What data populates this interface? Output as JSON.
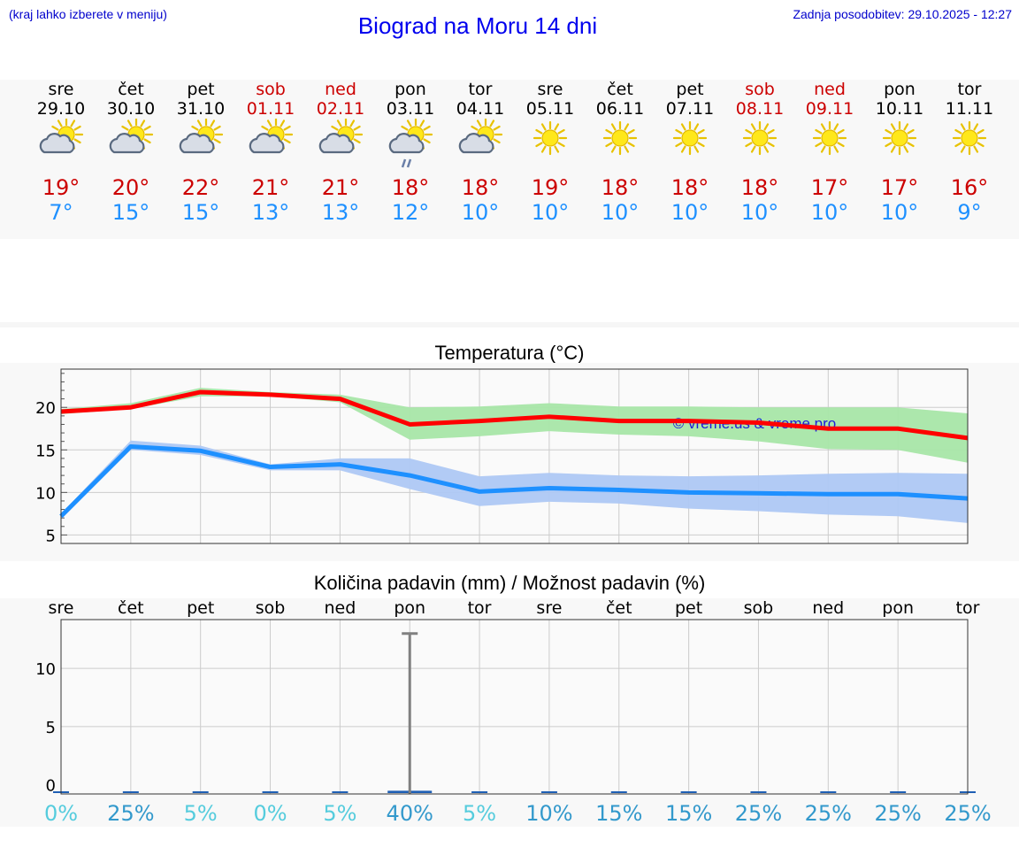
{
  "header": {
    "left_note": "(kraj lahko izberete v meniju)",
    "title": "Biograd na Moru 14 dni",
    "updated": "Zadnja posodobitev: 29.10.2025 - 12:27"
  },
  "days": [
    {
      "name": "sre",
      "date": "29.10",
      "weekend": false,
      "icon": "partly-cloudy-icon",
      "tmax": "19°",
      "tmin": "7°"
    },
    {
      "name": "čet",
      "date": "30.10",
      "weekend": false,
      "icon": "partly-cloudy-icon",
      "tmax": "20°",
      "tmin": "15°"
    },
    {
      "name": "pet",
      "date": "31.10",
      "weekend": false,
      "icon": "partly-cloudy-icon",
      "tmax": "22°",
      "tmin": "15°"
    },
    {
      "name": "sob",
      "date": "01.11",
      "weekend": true,
      "icon": "partly-cloudy-icon",
      "tmax": "21°",
      "tmin": "13°"
    },
    {
      "name": "ned",
      "date": "02.11",
      "weekend": true,
      "icon": "partly-cloudy-icon",
      "tmax": "21°",
      "tmin": "13°"
    },
    {
      "name": "pon",
      "date": "03.11",
      "weekend": false,
      "icon": "partly-cloudy-rain-icon",
      "tmax": "18°",
      "tmin": "12°"
    },
    {
      "name": "tor",
      "date": "04.11",
      "weekend": false,
      "icon": "partly-cloudy-icon",
      "tmax": "18°",
      "tmin": "10°"
    },
    {
      "name": "sre",
      "date": "05.11",
      "weekend": false,
      "icon": "sun-icon",
      "tmax": "19°",
      "tmin": "10°"
    },
    {
      "name": "čet",
      "date": "06.11",
      "weekend": false,
      "icon": "sun-icon",
      "tmax": "18°",
      "tmin": "10°"
    },
    {
      "name": "pet",
      "date": "07.11",
      "weekend": false,
      "icon": "sun-icon",
      "tmax": "18°",
      "tmin": "10°"
    },
    {
      "name": "sob",
      "date": "08.11",
      "weekend": true,
      "icon": "sun-icon",
      "tmax": "18°",
      "tmin": "10°"
    },
    {
      "name": "ned",
      "date": "09.11",
      "weekend": true,
      "icon": "sun-icon",
      "tmax": "17°",
      "tmin": "10°"
    },
    {
      "name": "pon",
      "date": "10.11",
      "weekend": false,
      "icon": "sun-icon",
      "tmax": "17°",
      "tmin": "10°"
    },
    {
      "name": "tor",
      "date": "11.11",
      "weekend": false,
      "icon": "sun-icon",
      "tmax": "16°",
      "tmin": "9°"
    }
  ],
  "chart_data": [
    {
      "type": "line",
      "title": "Temperatura (°C)",
      "xlabel": "",
      "ylabel": "",
      "ylim": [
        4,
        24.5
      ],
      "yticks": [
        5,
        10,
        15,
        20
      ],
      "grid": true,
      "watermark": "© vreme.us & vreme.pro",
      "x": [
        0,
        1,
        2,
        3,
        4,
        5,
        6,
        7,
        8,
        9,
        10,
        11,
        12,
        13
      ],
      "series": [
        {
          "name": "max",
          "color": "#ff0000",
          "values": [
            19.5,
            20,
            21.8,
            21.5,
            21,
            18,
            18.4,
            18.9,
            18.4,
            18.4,
            18.2,
            17.5,
            17.5,
            16.4
          ],
          "band_low": [
            19.2,
            19.8,
            21.3,
            21.3,
            20.6,
            16.2,
            16.6,
            17.2,
            16.8,
            16.6,
            16.0,
            15.1,
            15.0,
            13.5
          ],
          "band_high": [
            19.8,
            20.5,
            22.3,
            21.8,
            21.5,
            20.0,
            20.1,
            20.5,
            20.1,
            20.1,
            20.0,
            20.0,
            20.0,
            19.3
          ],
          "band_color": "#a8e6a8"
        },
        {
          "name": "min",
          "color": "#1e90ff",
          "values": [
            7.2,
            15.4,
            14.9,
            13,
            13.3,
            12,
            10.1,
            10.5,
            10.3,
            10.0,
            9.9,
            9.8,
            9.8,
            9.3
          ],
          "band_low": [
            7.0,
            15.0,
            14.4,
            12.6,
            12.6,
            10.4,
            8.4,
            8.9,
            8.7,
            8.1,
            7.8,
            7.4,
            7.2,
            6.4
          ],
          "band_high": [
            7.5,
            16.1,
            15.5,
            13.3,
            14.0,
            14.0,
            11.9,
            12.3,
            12.0,
            11.9,
            12.0,
            12.2,
            12.3,
            12.2
          ],
          "band_color": "#aec8f4"
        }
      ]
    },
    {
      "type": "bar",
      "title": "Količina padavin (mm) / Možnost padavin (%)",
      "categories": [
        "sre",
        "čet",
        "pet",
        "sob",
        "ned",
        "pon",
        "tor",
        "sre",
        "čet",
        "pet",
        "sob",
        "ned",
        "pon",
        "tor"
      ],
      "ylim": [
        -0.8,
        14.2
      ],
      "yticks": [
        0,
        5,
        10
      ],
      "grid": true,
      "values": [
        0,
        0,
        0,
        0,
        0,
        0.2,
        0,
        0,
        0,
        0,
        0,
        0,
        0,
        0
      ],
      "error_high": [
        0,
        0,
        0,
        0,
        0,
        13,
        0,
        0,
        0,
        0,
        0,
        0,
        0,
        0
      ],
      "probability": [
        "0%",
        "25%",
        "5%",
        "0%",
        "5%",
        "40%",
        "5%",
        "10%",
        "15%",
        "15%",
        "25%",
        "25%",
        "25%",
        "25%"
      ],
      "probability_colors": [
        "#55ccdd",
        "#3399cc",
        "#55ccdd",
        "#55ccdd",
        "#55ccdd",
        "#3399cc",
        "#55ccdd",
        "#3399cc",
        "#3399cc",
        "#3399cc",
        "#3399cc",
        "#3399cc",
        "#3399cc",
        "#3399cc"
      ],
      "bar_color": "#1f5fb4",
      "error_color": "#808080"
    }
  ]
}
